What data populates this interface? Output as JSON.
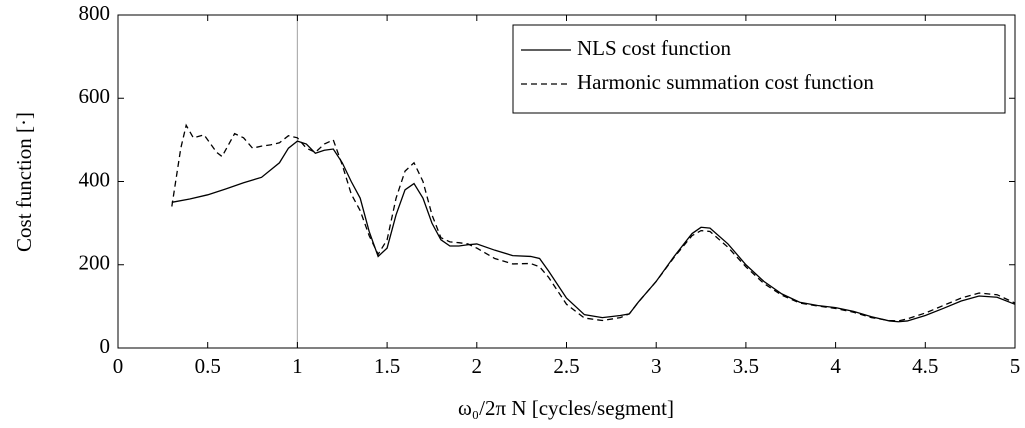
{
  "chart_data": {
    "type": "line",
    "xlabel": "ω₀/2π N [cycles/segment]",
    "ylabel": "Cost function [·]",
    "xlim": [
      0,
      5
    ],
    "xticks": [
      0,
      0.5,
      1,
      1.5,
      2,
      2.5,
      3,
      3.5,
      4,
      4.5,
      5
    ],
    "ylim": [
      0,
      800
    ],
    "yticks": [
      0,
      200,
      400,
      600,
      800
    ],
    "vline": 1,
    "vline_color": "#b0b0b0",
    "legend": "upper right",
    "series": [
      {
        "name": "NLS cost function",
        "color": "#000000",
        "dash": false,
        "x": [
          0.3,
          0.4,
          0.5,
          0.6,
          0.7,
          0.8,
          0.9,
          0.95,
          1.0,
          1.05,
          1.1,
          1.15,
          1.2,
          1.25,
          1.3,
          1.35,
          1.4,
          1.45,
          1.5,
          1.55,
          1.6,
          1.65,
          1.7,
          1.75,
          1.8,
          1.85,
          1.9,
          1.95,
          2.0,
          2.1,
          2.2,
          2.3,
          2.35,
          2.4,
          2.5,
          2.6,
          2.7,
          2.8,
          2.85,
          2.9,
          3.0,
          3.1,
          3.2,
          3.25,
          3.3,
          3.4,
          3.5,
          3.6,
          3.7,
          3.8,
          3.9,
          4.0,
          4.1,
          4.2,
          4.3,
          4.35,
          4.4,
          4.5,
          4.6,
          4.7,
          4.8,
          4.9,
          5.0
        ],
        "values": [
          350,
          358,
          368,
          382,
          397,
          410,
          445,
          480,
          497,
          490,
          468,
          475,
          478,
          445,
          400,
          360,
          280,
          220,
          240,
          320,
          380,
          395,
          360,
          300,
          260,
          245,
          245,
          248,
          250,
          235,
          222,
          220,
          215,
          185,
          120,
          80,
          73,
          78,
          82,
          110,
          160,
          220,
          275,
          290,
          288,
          250,
          200,
          160,
          130,
          110,
          102,
          97,
          88,
          75,
          65,
          63,
          65,
          78,
          95,
          113,
          125,
          122,
          105
        ]
      },
      {
        "name": "Harmonic summation cost function",
        "color": "#000000",
        "dash": true,
        "x": [
          0.3,
          0.35,
          0.38,
          0.42,
          0.48,
          0.55,
          0.58,
          0.65,
          0.7,
          0.75,
          0.8,
          0.85,
          0.9,
          0.95,
          1.0,
          1.05,
          1.1,
          1.15,
          1.2,
          1.25,
          1.3,
          1.35,
          1.4,
          1.45,
          1.5,
          1.55,
          1.6,
          1.65,
          1.7,
          1.75,
          1.8,
          1.85,
          1.9,
          1.95,
          2.0,
          2.1,
          2.2,
          2.3,
          2.35,
          2.4,
          2.5,
          2.6,
          2.7,
          2.8,
          2.85,
          2.9,
          3.0,
          3.1,
          3.2,
          3.25,
          3.3,
          3.4,
          3.5,
          3.6,
          3.7,
          3.8,
          3.9,
          4.0,
          4.1,
          4.2,
          4.3,
          4.35,
          4.4,
          4.5,
          4.6,
          4.7,
          4.8,
          4.9,
          5.0
        ],
        "values": [
          340,
          480,
          535,
          505,
          512,
          470,
          460,
          515,
          505,
          480,
          485,
          488,
          493,
          510,
          505,
          480,
          470,
          490,
          500,
          440,
          370,
          330,
          270,
          225,
          260,
          360,
          425,
          445,
          400,
          320,
          265,
          255,
          253,
          250,
          240,
          215,
          202,
          203,
          195,
          170,
          105,
          72,
          66,
          73,
          82,
          110,
          160,
          218,
          270,
          282,
          280,
          242,
          195,
          155,
          127,
          108,
          101,
          95,
          86,
          73,
          66,
          65,
          70,
          84,
          102,
          120,
          132,
          128,
          108
        ]
      }
    ]
  }
}
